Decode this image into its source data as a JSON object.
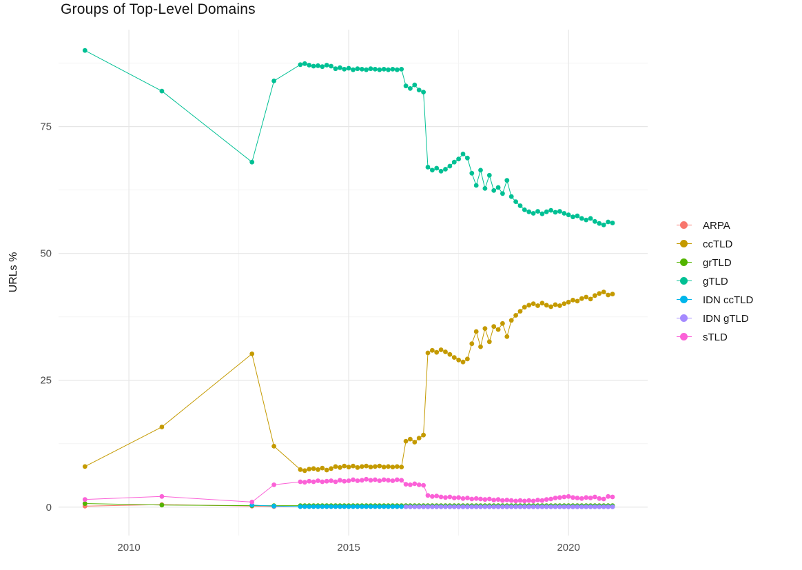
{
  "chart_data": {
    "type": "line",
    "title": "Groups of Top-Level Domains",
    "xlabel": "",
    "ylabel": "URLs %",
    "legend_position": "right",
    "grid": true,
    "x_ticks": [
      2010,
      2015,
      2020
    ],
    "y_ticks": [
      0,
      25,
      50,
      75
    ],
    "x_minor": [
      2012.5,
      2017.5
    ],
    "y_minor": [
      12.5,
      37.5,
      62.5,
      87.5
    ],
    "xlim": [
      2008.4,
      2021.8
    ],
    "ylim": [
      -5.6,
      94.1
    ],
    "colors": {
      "grid_major": "#e6e6e6",
      "grid_minor": "#f3f3f3",
      "tick_text": "#4d4d4d",
      "title_text": "#141414"
    },
    "x": [
      2009.0,
      2010.75,
      2012.8,
      2013.3,
      2013.9,
      2014.0,
      2014.1,
      2014.2,
      2014.3,
      2014.4,
      2014.5,
      2014.6,
      2014.7,
      2014.8,
      2014.9,
      2015.0,
      2015.1,
      2015.2,
      2015.3,
      2015.4,
      2015.5,
      2015.6,
      2015.7,
      2015.8,
      2015.9,
      2016.0,
      2016.1,
      2016.2,
      2016.3,
      2016.4,
      2016.5,
      2016.6,
      2016.7,
      2016.8,
      2016.9,
      2017.0,
      2017.1,
      2017.2,
      2017.3,
      2017.4,
      2017.5,
      2017.6,
      2017.7,
      2017.8,
      2017.9,
      2018.0,
      2018.1,
      2018.2,
      2018.3,
      2018.4,
      2018.5,
      2018.6,
      2018.7,
      2018.8,
      2018.9,
      2019.0,
      2019.1,
      2019.2,
      2019.3,
      2019.4,
      2019.5,
      2019.6,
      2019.7,
      2019.8,
      2019.9,
      2020.0,
      2020.1,
      2020.2,
      2020.3,
      2020.4,
      2020.5,
      2020.6,
      2020.7,
      2020.8,
      2020.9,
      2021.0
    ],
    "series": [
      {
        "name": "ARPA",
        "color": "#F8766D",
        "values": [
          0.2,
          0.5,
          0.2,
          0.1,
          0.1,
          0.1,
          0.1,
          0.1,
          0.1,
          0.1,
          0.1,
          0.1,
          0.1,
          0.1,
          0.1,
          0.1,
          0.1,
          0.1,
          0.1,
          0.1,
          0.1,
          0.1,
          0.1,
          0.1,
          0.1,
          0.1,
          0.1,
          0.1,
          0.1,
          0.1,
          0.1,
          0.1,
          0.1,
          0.1,
          0.1,
          0.1,
          0.1,
          0.1,
          0.1,
          0.1,
          0.1,
          0.1,
          0.1,
          0.1,
          0.1,
          0.1,
          0.1,
          0.1,
          0.1,
          0.1,
          0.1,
          0.1,
          0.1,
          0.1,
          0.1,
          0.1,
          0.1,
          0.1,
          0.1,
          0.1,
          0.1,
          0.1,
          0.1,
          0.1,
          0.1,
          0.1,
          0.1,
          0.1,
          0.1,
          0.1,
          0.1,
          0.1,
          0.1,
          0.1,
          0.1,
          0.1
        ]
      },
      {
        "name": "ccTLD",
        "color": "#C49A00",
        "values": [
          8.0,
          15.8,
          30.2,
          12.0,
          7.4,
          7.2,
          7.5,
          7.6,
          7.4,
          7.7,
          7.3,
          7.6,
          8.0,
          7.8,
          8.1,
          7.9,
          8.1,
          7.8,
          8.0,
          8.1,
          7.9,
          8.0,
          8.1,
          7.9,
          8.0,
          7.9,
          8.0,
          7.9,
          13.0,
          13.4,
          12.8,
          13.6,
          14.2,
          30.4,
          30.9,
          30.5,
          31.0,
          30.6,
          30.1,
          29.5,
          29.0,
          28.6,
          29.2,
          32.2,
          34.6,
          31.6,
          35.2,
          32.6,
          35.6,
          35.0,
          36.2,
          33.6,
          36.8,
          37.8,
          38.6,
          39.4,
          39.8,
          40.1,
          39.7,
          40.2,
          39.8,
          39.5,
          39.9,
          39.7,
          40.1,
          40.4,
          40.8,
          40.6,
          41.1,
          41.4,
          41.0,
          41.7,
          42.1,
          42.4,
          41.8,
          42.0
        ]
      },
      {
        "name": "grTLD",
        "color": "#53B400",
        "values": [
          0.7,
          0.4,
          0.3,
          0.3,
          0.3,
          0.3,
          0.3,
          0.3,
          0.3,
          0.3,
          0.3,
          0.3,
          0.3,
          0.3,
          0.3,
          0.3,
          0.3,
          0.3,
          0.3,
          0.3,
          0.3,
          0.3,
          0.3,
          0.3,
          0.3,
          0.3,
          0.3,
          0.3,
          0.3,
          0.3,
          0.3,
          0.3,
          0.3,
          0.3,
          0.3,
          0.3,
          0.3,
          0.3,
          0.3,
          0.3,
          0.3,
          0.3,
          0.3,
          0.3,
          0.3,
          0.3,
          0.3,
          0.3,
          0.3,
          0.3,
          0.3,
          0.3,
          0.3,
          0.3,
          0.3,
          0.3,
          0.3,
          0.3,
          0.3,
          0.3,
          0.3,
          0.3,
          0.3,
          0.3,
          0.3,
          0.3,
          0.3,
          0.3,
          0.3,
          0.3,
          0.3,
          0.3,
          0.3,
          0.3,
          0.3,
          0.3
        ]
      },
      {
        "name": "gTLD",
        "color": "#00C094",
        "values": [
          90.0,
          82.0,
          68.0,
          84.0,
          87.2,
          87.4,
          87.1,
          86.9,
          87.0,
          86.8,
          87.1,
          86.9,
          86.4,
          86.6,
          86.3,
          86.5,
          86.2,
          86.4,
          86.3,
          86.2,
          86.4,
          86.3,
          86.2,
          86.3,
          86.2,
          86.3,
          86.2,
          86.3,
          83.0,
          82.5,
          83.2,
          82.2,
          81.8,
          67.0,
          66.4,
          66.8,
          66.2,
          66.6,
          67.2,
          68.0,
          68.6,
          69.6,
          68.8,
          65.8,
          63.4,
          66.4,
          62.8,
          65.4,
          62.4,
          63.0,
          61.8,
          64.4,
          61.2,
          60.2,
          59.4,
          58.6,
          58.2,
          57.9,
          58.3,
          57.8,
          58.2,
          58.5,
          58.1,
          58.3,
          57.9,
          57.6,
          57.2,
          57.4,
          56.9,
          56.6,
          56.9,
          56.3,
          55.9,
          55.6,
          56.2,
          56.0
        ]
      },
      {
        "name": "IDN ccTLD",
        "color": "#00B6EB",
        "values": [
          null,
          null,
          0.4,
          0.2,
          0.1,
          0.1,
          0.1,
          0.1,
          0.1,
          0.1,
          0.1,
          0.1,
          0.1,
          0.1,
          0.1,
          0.1,
          0.1,
          0.1,
          0.1,
          0.1,
          0.1,
          0.1,
          0.1,
          0.1,
          0.1,
          0.1,
          0.1,
          0.1,
          0.1,
          0.1,
          0.1,
          0.1,
          0.1,
          0.1,
          0.1,
          0.1,
          0.1,
          0.1,
          0.1,
          0.1,
          0.1,
          0.1,
          0.1,
          0.1,
          0.1,
          0.1,
          0.1,
          0.1,
          0.1,
          0.1,
          0.1,
          0.1,
          0.1,
          0.1,
          0.1,
          0.1,
          0.1,
          0.1,
          0.1,
          0.1,
          0.1,
          0.1,
          0.1,
          0.1,
          0.1,
          0.1,
          0.1,
          0.1,
          0.1,
          0.1,
          0.1,
          0.1,
          0.1,
          0.1,
          0.1,
          0.1
        ]
      },
      {
        "name": "IDN gTLD",
        "color": "#A58AFF",
        "values": [
          null,
          null,
          null,
          null,
          null,
          null,
          null,
          null,
          null,
          null,
          null,
          null,
          null,
          null,
          null,
          null,
          null,
          null,
          null,
          null,
          null,
          null,
          null,
          null,
          null,
          null,
          null,
          null,
          0.05,
          0.05,
          0.05,
          0.05,
          0.05,
          0.05,
          0.05,
          0.05,
          0.05,
          0.05,
          0.05,
          0.05,
          0.05,
          0.05,
          0.05,
          0.05,
          0.05,
          0.05,
          0.05,
          0.05,
          0.05,
          0.05,
          0.05,
          0.05,
          0.05,
          0.05,
          0.05,
          0.05,
          0.05,
          0.05,
          0.05,
          0.05,
          0.05,
          0.05,
          0.05,
          0.05,
          0.05,
          0.05,
          0.05,
          0.05,
          0.05,
          0.05,
          0.05,
          0.05,
          0.05,
          0.05,
          0.05,
          0.05
        ]
      },
      {
        "name": "sTLD",
        "color": "#FB61D7",
        "values": [
          1.5,
          2.1,
          1.0,
          4.4,
          5.0,
          4.9,
          5.1,
          5.0,
          5.2,
          5.0,
          5.1,
          5.2,
          5.0,
          5.3,
          5.1,
          5.2,
          5.4,
          5.2,
          5.3,
          5.5,
          5.3,
          5.4,
          5.2,
          5.4,
          5.3,
          5.2,
          5.4,
          5.3,
          4.5,
          4.4,
          4.6,
          4.4,
          4.3,
          2.3,
          2.1,
          2.2,
          2.0,
          1.9,
          2.0,
          1.8,
          1.9,
          1.7,
          1.8,
          1.6,
          1.7,
          1.6,
          1.5,
          1.6,
          1.4,
          1.5,
          1.3,
          1.4,
          1.3,
          1.2,
          1.3,
          1.2,
          1.3,
          1.2,
          1.4,
          1.3,
          1.5,
          1.6,
          1.8,
          1.9,
          2.0,
          2.1,
          1.9,
          1.8,
          1.7,
          1.9,
          1.8,
          2.0,
          1.7,
          1.6,
          2.1,
          2.0
        ]
      }
    ]
  }
}
